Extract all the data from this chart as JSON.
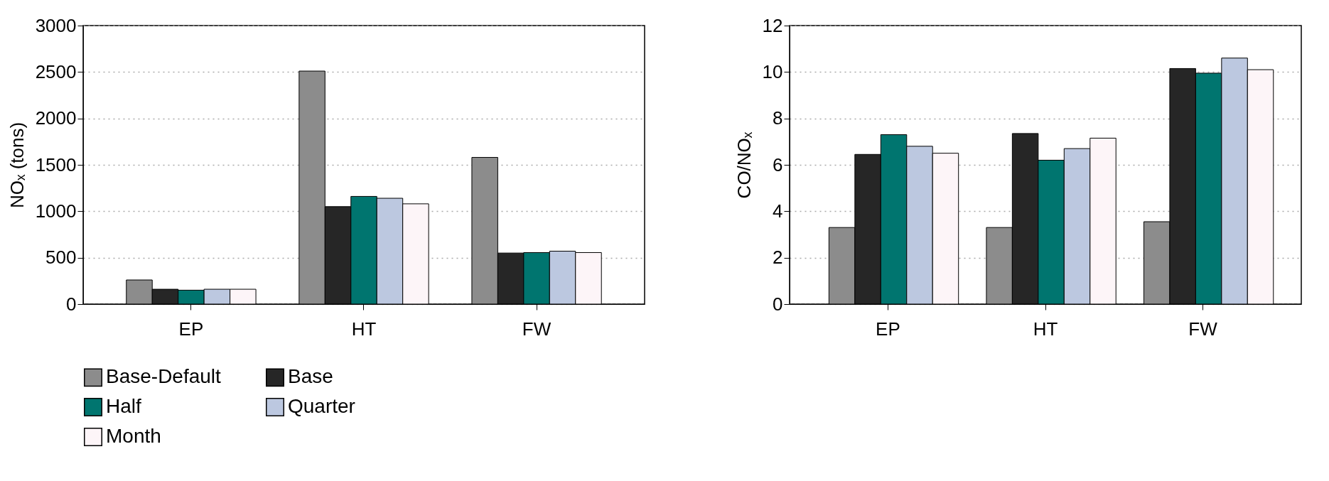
{
  "chart_data": [
    {
      "type": "bar",
      "ylabel": "NOₓ (tons)",
      "categories": [
        "EP",
        "HT",
        "FW"
      ],
      "series": [
        {
          "name": "Base-Default",
          "color": "#8c8c8c",
          "values": [
            260,
            2510,
            1580
          ]
        },
        {
          "name": "Base",
          "color": "#262626",
          "values": [
            160,
            1050,
            550
          ]
        },
        {
          "name": "Half",
          "color": "#00756f",
          "values": [
            150,
            1160,
            555
          ]
        },
        {
          "name": "Quarter",
          "color": "#bcc8e0",
          "values": [
            160,
            1140,
            570
          ]
        },
        {
          "name": "Month",
          "color": "#fdf5f8",
          "values": [
            160,
            1080,
            555
          ]
        }
      ],
      "ylim": [
        0,
        3000
      ],
      "yticks": [
        0,
        500,
        1000,
        1500,
        2000,
        2500,
        3000
      ],
      "grid": "y",
      "legend": "bottom"
    },
    {
      "type": "bar",
      "ylabel": "CO/NOₓ",
      "categories": [
        "EP",
        "HT",
        "FW"
      ],
      "series": [
        {
          "name": "Base-Default",
          "color": "#8c8c8c",
          "values": [
            3.3,
            3.3,
            3.55
          ]
        },
        {
          "name": "Base",
          "color": "#262626",
          "values": [
            6.45,
            7.35,
            10.15
          ]
        },
        {
          "name": "Half",
          "color": "#00756f",
          "values": [
            7.3,
            6.2,
            9.95
          ]
        },
        {
          "name": "Quarter",
          "color": "#bcc8e0",
          "values": [
            6.8,
            6.7,
            10.6
          ]
        },
        {
          "name": "Month",
          "color": "#fdf5f8",
          "values": [
            6.5,
            7.15,
            10.1
          ]
        }
      ],
      "ylim": [
        0,
        12
      ],
      "yticks": [
        0,
        2,
        4,
        6,
        8,
        10,
        12
      ],
      "grid": "y",
      "legend": "bottom"
    }
  ]
}
